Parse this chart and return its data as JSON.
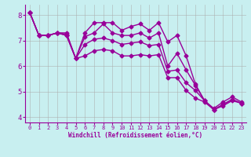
{
  "background_color": "#c8eff0",
  "grid_color": "#aaaaaa",
  "line_color": "#990099",
  "marker": "D",
  "markersize": 2.5,
  "linewidth": 1.0,
  "xlabel": "Windchill (Refroidissement éolien,°C)",
  "xlim": [
    -0.5,
    23.5
  ],
  "ylim": [
    3.8,
    8.4
  ],
  "yticks": [
    4,
    5,
    6,
    7,
    8
  ],
  "xticks": [
    0,
    1,
    2,
    3,
    4,
    5,
    6,
    7,
    8,
    9,
    10,
    11,
    12,
    13,
    14,
    15,
    16,
    17,
    18,
    19,
    20,
    21,
    22,
    23
  ],
  "series": [
    [
      8.1,
      7.2,
      7.2,
      7.3,
      7.3,
      6.3,
      7.3,
      7.7,
      7.7,
      7.7,
      7.4,
      7.55,
      7.65,
      7.4,
      7.7,
      6.95,
      7.2,
      6.4,
      5.3,
      4.65,
      4.35,
      4.6,
      4.8,
      4.6
    ],
    [
      8.1,
      7.2,
      7.2,
      7.3,
      7.2,
      6.3,
      7.15,
      7.3,
      7.65,
      7.3,
      7.2,
      7.2,
      7.3,
      7.1,
      7.3,
      6.0,
      6.5,
      5.85,
      5.25,
      4.65,
      4.3,
      4.5,
      4.7,
      4.55
    ],
    [
      8.1,
      7.2,
      7.2,
      7.3,
      7.25,
      6.3,
      6.85,
      7.05,
      7.1,
      7.0,
      6.85,
      6.9,
      6.95,
      6.8,
      6.85,
      5.8,
      5.85,
      5.35,
      5.05,
      4.65,
      4.3,
      4.5,
      4.7,
      4.55
    ],
    [
      8.1,
      7.2,
      7.2,
      7.3,
      7.2,
      6.3,
      6.4,
      6.6,
      6.65,
      6.6,
      6.4,
      6.4,
      6.45,
      6.4,
      6.45,
      5.55,
      5.55,
      5.05,
      4.75,
      4.6,
      4.3,
      4.45,
      4.65,
      4.55
    ]
  ]
}
